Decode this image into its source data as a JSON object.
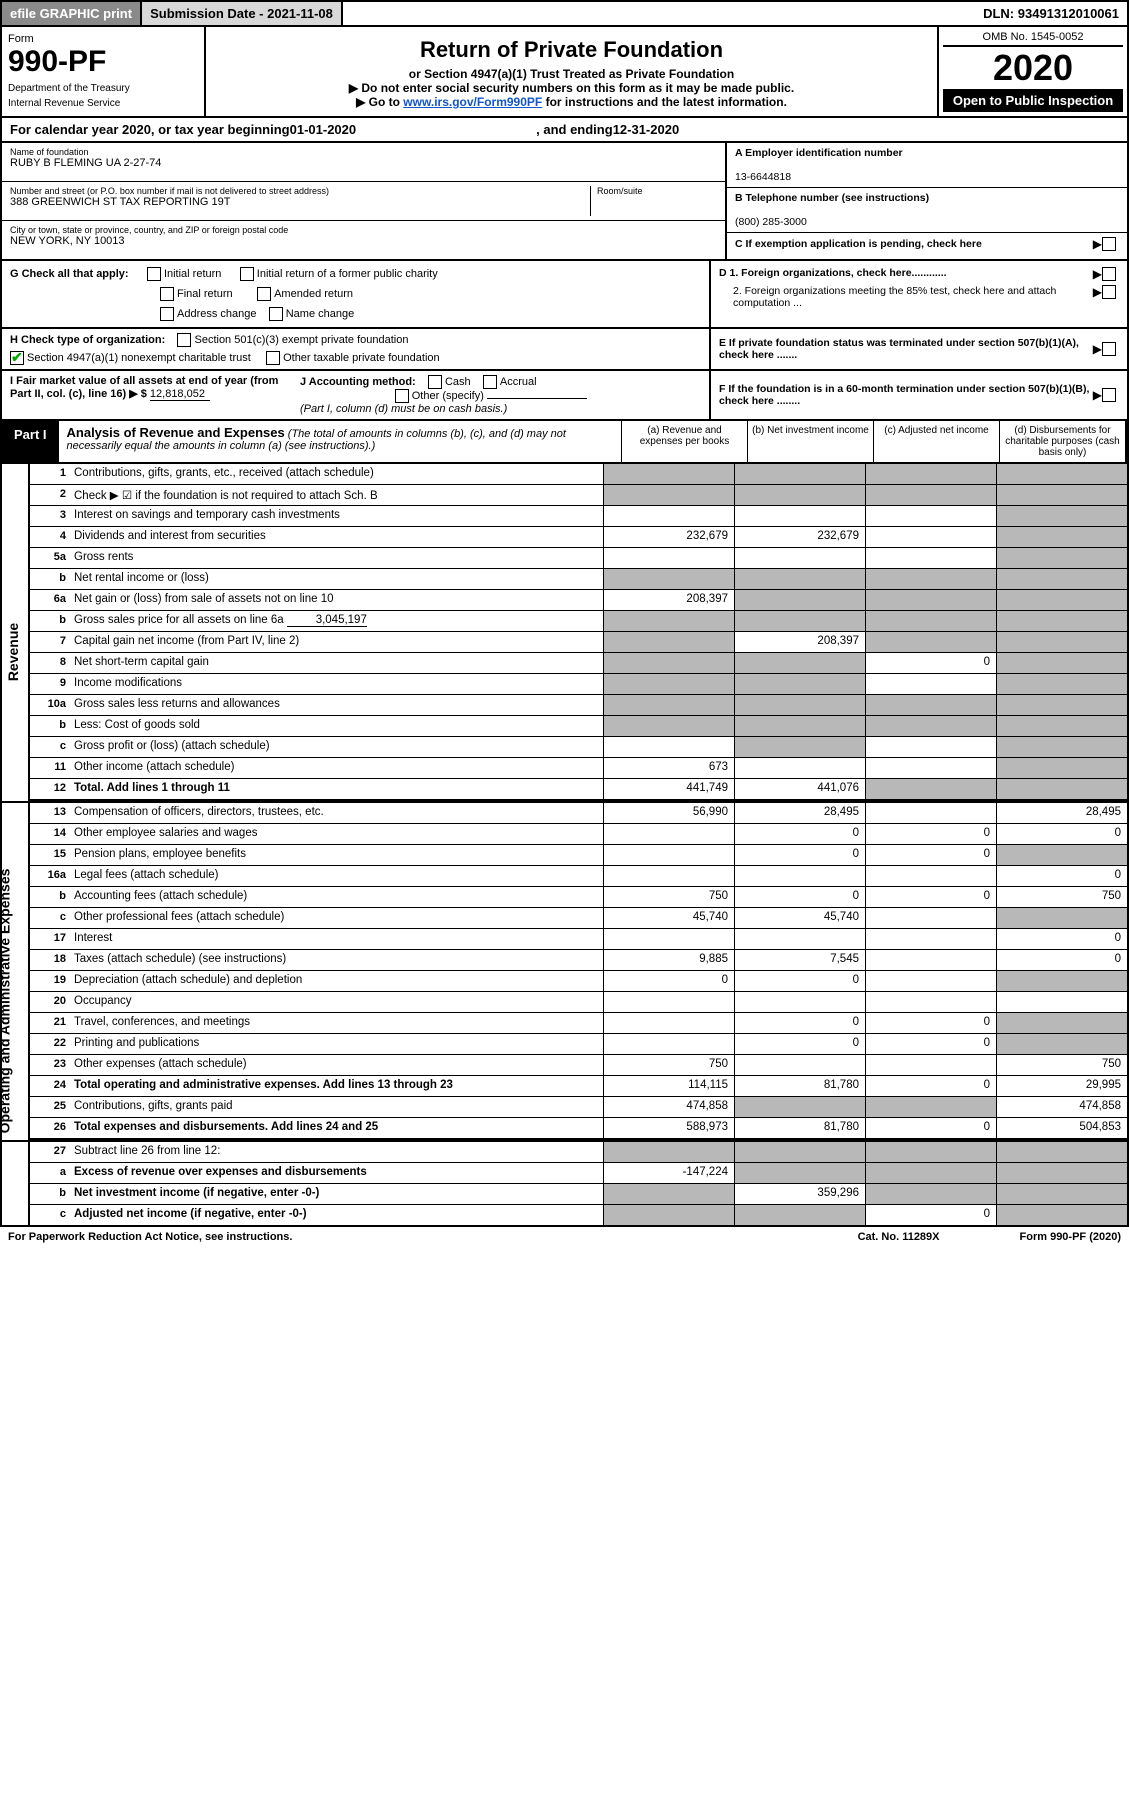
{
  "topbar": {
    "efile": "efile GRAPHIC print",
    "subdate_label": "Submission Date - ",
    "subdate": "2021-11-08",
    "dln_label": "DLN: ",
    "dln": "93491312010061"
  },
  "header": {
    "form_word": "Form",
    "form_num": "990-PF",
    "dept": "Department of the Treasury",
    "irs": "Internal Revenue Service",
    "title": "Return of Private Foundation",
    "subtitle": "or Section 4947(a)(1) Trust Treated as Private Foundation",
    "instr1": "▶ Do not enter social security numbers on this form as it may be made public.",
    "instr2_pre": "▶ Go to ",
    "instr2_link": "www.irs.gov/Form990PF",
    "instr2_post": " for instructions and the latest information.",
    "omb": "OMB No. 1545-0052",
    "year": "2020",
    "open": "Open to Public Inspection"
  },
  "calyear": {
    "pre": "For calendar year 2020, or tax year beginning ",
    "begin": "01-01-2020",
    "mid": ", and ending ",
    "end": "12-31-2020"
  },
  "id": {
    "name_label": "Name of foundation",
    "name": "RUBY B FLEMING UA 2-27-74",
    "addr_label": "Number and street (or P.O. box number if mail is not delivered to street address)",
    "addr": "388 GREENWICH ST TAX REPORTING 19T",
    "room_label": "Room/suite",
    "city_label": "City or town, state or province, country, and ZIP or foreign postal code",
    "city": "NEW YORK, NY  10013",
    "a_label": "A Employer identification number",
    "a_val": "13-6644818",
    "b_label": "B Telephone number (see instructions)",
    "b_val": "(800) 285-3000",
    "c_label": "C If exemption application is pending, check here"
  },
  "checks": {
    "g_label": "G Check all that apply:",
    "g1": "Initial return",
    "g2": "Initial return of a former public charity",
    "g3": "Final return",
    "g4": "Amended return",
    "g5": "Address change",
    "g6": "Name change",
    "d1": "D 1. Foreign organizations, check here............",
    "d2": "2. Foreign organizations meeting the 85% test, check here and attach computation ...",
    "e": "E  If private foundation status was terminated under section 507(b)(1)(A), check here .......",
    "h_label": "H Check type of organization:",
    "h1": "Section 501(c)(3) exempt private foundation",
    "h2": "Section 4947(a)(1) nonexempt charitable trust",
    "h3": "Other taxable private foundation",
    "i_label": "I Fair market value of all assets at end of year (from Part II, col. (c), line 16) ▶ $",
    "i_val": "12,818,052",
    "j_label": "J Accounting method:",
    "j1": "Cash",
    "j2": "Accrual",
    "j3": "Other (specify)",
    "j_note": "(Part I, column (d) must be on cash basis.)",
    "f": "F  If the foundation is in a 60-month termination under section 507(b)(1)(B), check here ........"
  },
  "part1": {
    "label": "Part I",
    "title": "Analysis of Revenue and Expenses",
    "note": " (The total of amounts in columns (b), (c), and (d) may not necessarily equal the amounts in column (a) (see instructions).)",
    "col_a": "(a)  Revenue and expenses per books",
    "col_b": "(b)  Net investment income",
    "col_c": "(c)  Adjusted net income",
    "col_d": "(d)  Disbursements for charitable purposes (cash basis only)"
  },
  "sidetabs": {
    "rev": "Revenue",
    "op": "Operating and Administrative Expenses"
  },
  "rows": {
    "r1": {
      "ln": "1",
      "desc": "Contributions, gifts, grants, etc., received (attach schedule)"
    },
    "r2": {
      "ln": "2",
      "desc": "Check ▶ ☑ if the foundation is not required to attach Sch. B"
    },
    "r3": {
      "ln": "3",
      "desc": "Interest on savings and temporary cash investments"
    },
    "r4": {
      "ln": "4",
      "desc": "Dividends and interest from securities",
      "a": "232,679",
      "b": "232,679"
    },
    "r5a": {
      "ln": "5a",
      "desc": "Gross rents"
    },
    "r5b": {
      "ln": "b",
      "desc": "Net rental income or (loss)"
    },
    "r6a": {
      "ln": "6a",
      "desc": "Net gain or (loss) from sale of assets not on line 10",
      "a": "208,397"
    },
    "r6b": {
      "ln": "b",
      "desc": "Gross sales price for all assets on line 6a",
      "inline": "3,045,197"
    },
    "r7": {
      "ln": "7",
      "desc": "Capital gain net income (from Part IV, line 2)",
      "b": "208,397"
    },
    "r8": {
      "ln": "8",
      "desc": "Net short-term capital gain",
      "c": "0"
    },
    "r9": {
      "ln": "9",
      "desc": "Income modifications"
    },
    "r10a": {
      "ln": "10a",
      "desc": "Gross sales less returns and allowances"
    },
    "r10b": {
      "ln": "b",
      "desc": "Less: Cost of goods sold"
    },
    "r10c": {
      "ln": "c",
      "desc": "Gross profit or (loss) (attach schedule)"
    },
    "r11": {
      "ln": "11",
      "desc": "Other income (attach schedule)",
      "a": "673"
    },
    "r12": {
      "ln": "12",
      "desc": "Total. Add lines 1 through 11",
      "a": "441,749",
      "b": "441,076",
      "bold": true
    },
    "r13": {
      "ln": "13",
      "desc": "Compensation of officers, directors, trustees, etc.",
      "a": "56,990",
      "b": "28,495",
      "d": "28,495"
    },
    "r14": {
      "ln": "14",
      "desc": "Other employee salaries and wages",
      "b": "0",
      "c": "0",
      "d": "0"
    },
    "r15": {
      "ln": "15",
      "desc": "Pension plans, employee benefits",
      "b": "0",
      "c": "0"
    },
    "r16a": {
      "ln": "16a",
      "desc": "Legal fees (attach schedule)",
      "d": "0"
    },
    "r16b": {
      "ln": "b",
      "desc": "Accounting fees (attach schedule)",
      "a": "750",
      "b": "0",
      "c": "0",
      "d": "750"
    },
    "r16c": {
      "ln": "c",
      "desc": "Other professional fees (attach schedule)",
      "a": "45,740",
      "b": "45,740"
    },
    "r17": {
      "ln": "17",
      "desc": "Interest",
      "d": "0"
    },
    "r18": {
      "ln": "18",
      "desc": "Taxes (attach schedule) (see instructions)",
      "a": "9,885",
      "b": "7,545",
      "d": "0"
    },
    "r19": {
      "ln": "19",
      "desc": "Depreciation (attach schedule) and depletion",
      "a": "0",
      "b": "0"
    },
    "r20": {
      "ln": "20",
      "desc": "Occupancy"
    },
    "r21": {
      "ln": "21",
      "desc": "Travel, conferences, and meetings",
      "b": "0",
      "c": "0"
    },
    "r22": {
      "ln": "22",
      "desc": "Printing and publications",
      "b": "0",
      "c": "0"
    },
    "r23": {
      "ln": "23",
      "desc": "Other expenses (attach schedule)",
      "a": "750",
      "d": "750"
    },
    "r24": {
      "ln": "24",
      "desc": "Total operating and administrative expenses. Add lines 13 through 23",
      "a": "114,115",
      "b": "81,780",
      "c": "0",
      "d": "29,995",
      "bold": true
    },
    "r25": {
      "ln": "25",
      "desc": "Contributions, gifts, grants paid",
      "a": "474,858",
      "d": "474,858"
    },
    "r26": {
      "ln": "26",
      "desc": "Total expenses and disbursements. Add lines 24 and 25",
      "a": "588,973",
      "b": "81,780",
      "c": "0",
      "d": "504,853",
      "bold": true
    },
    "r27": {
      "ln": "27",
      "desc": "Subtract line 26 from line 12:"
    },
    "r27a": {
      "ln": "a",
      "desc": "Excess of revenue over expenses and disbursements",
      "a": "-147,224",
      "bold": true
    },
    "r27b": {
      "ln": "b",
      "desc": "Net investment income (if negative, enter -0-)",
      "b": "359,296",
      "bold": true
    },
    "r27c": {
      "ln": "c",
      "desc": "Adjusted net income (if negative, enter -0-)",
      "c": "0",
      "bold": true
    }
  },
  "footer": {
    "pra": "For Paperwork Reduction Act Notice, see instructions.",
    "cat": "Cat. No. 11289X",
    "form": "Form 990-PF (2020)"
  },
  "colors": {
    "grey_bg": "#b8b8b8",
    "dark_grey": "#8a8a8a",
    "light_grey": "#d8d8d8",
    "link": "#1155cc"
  }
}
